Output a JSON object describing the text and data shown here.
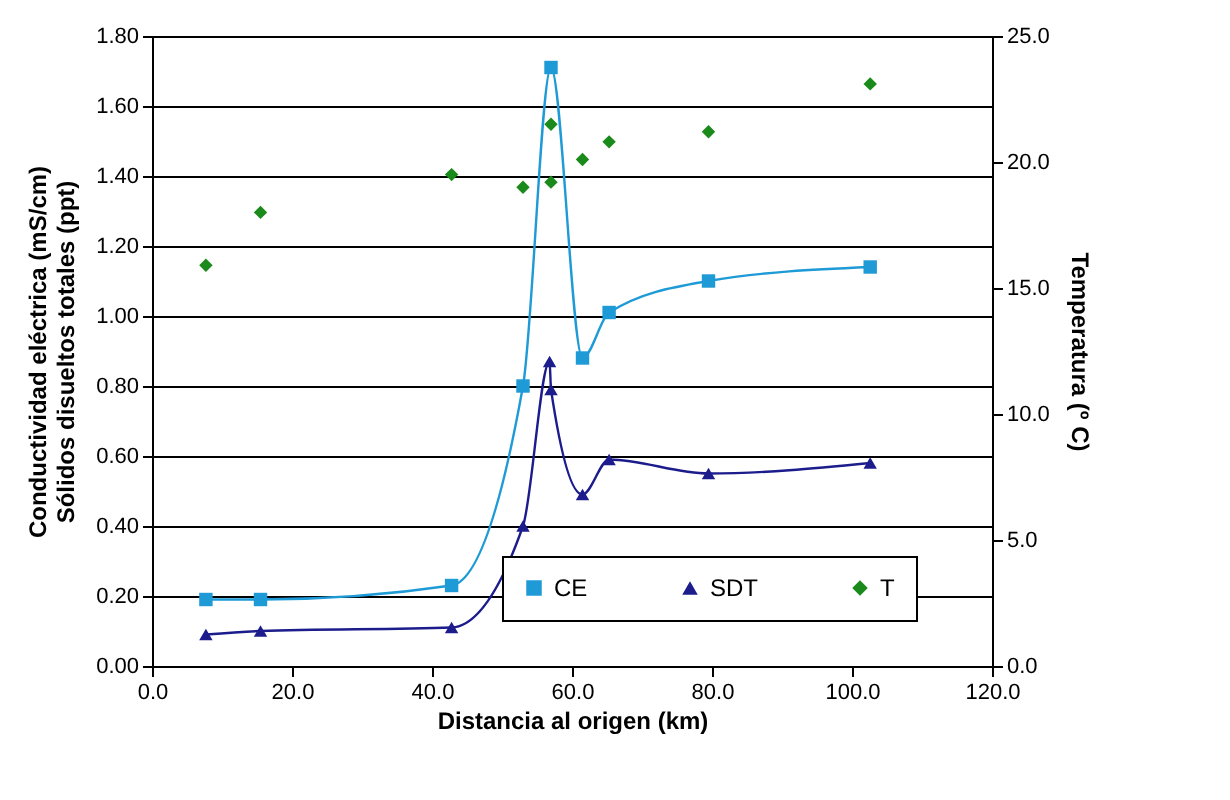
{
  "chart_data": {
    "type": "line",
    "xlabel": "Distancia al origen (km)",
    "ylabel": "Conductividad eléctrica (mS/cm)\nSólidos disueltos totales (ppt)",
    "y2label": "Temperatura (º C)",
    "xlim": [
      0,
      120
    ],
    "xticks": [
      {
        "value": 0,
        "label": "0.0"
      },
      {
        "value": 20,
        "label": "20.0"
      },
      {
        "value": 40,
        "label": "40.0"
      },
      {
        "value": 60,
        "label": "60.0"
      },
      {
        "value": 80,
        "label": "80.0"
      },
      {
        "value": 100,
        "label": "100.0"
      },
      {
        "value": 120,
        "label": "120.0"
      }
    ],
    "ylim": [
      0,
      1.8
    ],
    "yticks": [
      {
        "value": 0,
        "label": "0.00"
      },
      {
        "value": 0.2,
        "label": "0.20"
      },
      {
        "value": 0.4,
        "label": "0.40"
      },
      {
        "value": 0.6,
        "label": "0.60"
      },
      {
        "value": 0.8,
        "label": "0.80"
      },
      {
        "value": 1,
        "label": "1.00"
      },
      {
        "value": 1.2,
        "label": "1.20"
      },
      {
        "value": 1.4,
        "label": "1.40"
      },
      {
        "value": 1.6,
        "label": "1.60"
      },
      {
        "value": 1.8,
        "label": "1.80"
      }
    ],
    "y2lim": [
      0,
      25
    ],
    "y2ticks": [
      {
        "value": 0,
        "label": "0.0"
      },
      {
        "value": 5,
        "label": "5.0"
      },
      {
        "value": 10,
        "label": "10.0"
      },
      {
        "value": 15,
        "label": "15.0"
      },
      {
        "value": 20,
        "label": "20.0"
      },
      {
        "value": 25,
        "label": "25.0"
      }
    ],
    "grid": "y",
    "legend": "bottom right",
    "series": [
      {
        "name": "CE",
        "color": "#1e9ad6",
        "marker": "square",
        "x": [
          7.7,
          15.5,
          42.8,
          53.0,
          57.0,
          61.5,
          65.3,
          79.5,
          102.6
        ],
        "values": [
          0.19,
          0.19,
          0.23,
          0.8,
          1.71,
          0.88,
          1.01,
          1.1,
          1.14
        ]
      },
      {
        "name": "SDT",
        "color": "#1c1c8c",
        "marker": "triangle",
        "x": [
          7.7,
          15.5,
          42.8,
          53.0,
          56.8,
          57.0,
          61.5,
          65.3,
          79.5,
          102.6
        ],
        "values": [
          0.09,
          0.1,
          0.11,
          0.4,
          0.87,
          0.79,
          0.49,
          0.59,
          0.55,
          0.58
        ]
      },
      {
        "name": "T",
        "type": "scatter",
        "axis": "y2",
        "color": "#1a8a1a",
        "marker": "diamond",
        "x": [
          7.7,
          15.5,
          42.8,
          53.0,
          57.0,
          57.0,
          61.5,
          65.3,
          79.5,
          102.6
        ],
        "values": [
          15.9,
          18.0,
          19.5,
          19.0,
          21.5,
          19.2,
          20.1,
          20.8,
          21.2,
          23.1
        ]
      }
    ]
  }
}
